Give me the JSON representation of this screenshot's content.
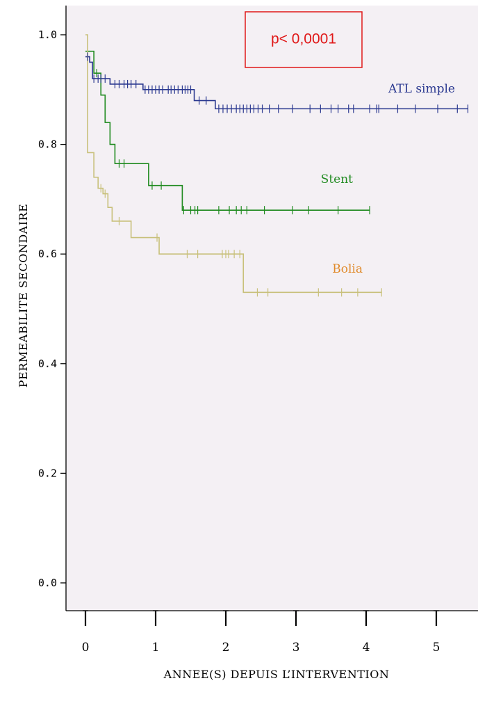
{
  "chart_data": {
    "type": "line",
    "subtype": "kaplan-meier",
    "title": "",
    "xlabel": "ANNEE(S) DEPUIS L’INTERVENTION",
    "ylabel": "PERMEABILITE SECONDAIRE",
    "xlim": [
      -0.3,
      5.6
    ],
    "ylim": [
      -0.05,
      1.05
    ],
    "x_ticks": [
      0,
      1,
      2,
      3,
      4,
      5
    ],
    "x_tick_labels": [
      "0",
      "1",
      "2",
      "3",
      "4",
      "5"
    ],
    "y_ticks": [
      0.0,
      0.2,
      0.4,
      0.6,
      0.8,
      1.0
    ],
    "y_tick_labels": [
      "0.0",
      "0.2",
      "0.4",
      "0.6",
      "0.8",
      "1.0"
    ],
    "grid": false,
    "annotation": "p< 0,0001",
    "series": [
      {
        "name": "ATL simple",
        "color": "#2b3990",
        "x": [
          0,
          0.06,
          0.1,
          0.35,
          0.82,
          1.55,
          1.85,
          5.45
        ],
        "y": [
          0.96,
          0.95,
          0.92,
          0.91,
          0.9,
          0.88,
          0.865,
          0.865
        ],
        "censored_x": [
          0.03,
          0.12,
          0.18,
          0.22,
          0.28,
          0.42,
          0.48,
          0.55,
          0.6,
          0.65,
          0.72,
          0.85,
          0.9,
          0.95,
          1.0,
          1.05,
          1.1,
          1.18,
          1.22,
          1.27,
          1.32,
          1.38,
          1.42,
          1.46,
          1.5,
          1.62,
          1.72,
          1.9,
          1.96,
          2.02,
          2.08,
          2.15,
          2.2,
          2.25,
          2.3,
          2.35,
          2.4,
          2.46,
          2.52,
          2.62,
          2.75,
          2.95,
          3.2,
          3.35,
          3.5,
          3.6,
          3.75,
          3.82,
          4.05,
          4.15,
          4.18,
          4.45,
          4.7,
          5.02,
          5.3,
          5.45
        ]
      },
      {
        "name": "Stent",
        "color": "#1f8a1f",
        "x": [
          0,
          0.12,
          0.22,
          0.28,
          0.35,
          0.42,
          0.9,
          1.38,
          4.05
        ],
        "y": [
          0.97,
          0.93,
          0.89,
          0.84,
          0.8,
          0.765,
          0.725,
          0.68,
          0.68
        ],
        "censored_x": [
          0.16,
          0.48,
          0.55,
          0.95,
          1.08,
          1.4,
          1.5,
          1.56,
          1.6,
          1.9,
          2.05,
          2.15,
          2.22,
          2.3,
          2.55,
          2.95,
          3.18,
          3.6,
          4.05
        ]
      },
      {
        "name": "Bolia",
        "color": "#c8c07a",
        "x": [
          0,
          0.03,
          0.12,
          0.18,
          0.25,
          0.32,
          0.38,
          0.65,
          1.05,
          2.25,
          4.22
        ],
        "y": [
          1.0,
          0.785,
          0.74,
          0.72,
          0.71,
          0.685,
          0.66,
          0.63,
          0.6,
          0.53,
          0.53
        ],
        "censored_x": [
          0.22,
          0.28,
          0.48,
          1.02,
          1.45,
          1.6,
          1.95,
          2.0,
          2.04,
          2.12,
          2.2,
          2.45,
          2.6,
          3.32,
          3.65,
          3.88,
          4.22
        ]
      }
    ]
  }
}
